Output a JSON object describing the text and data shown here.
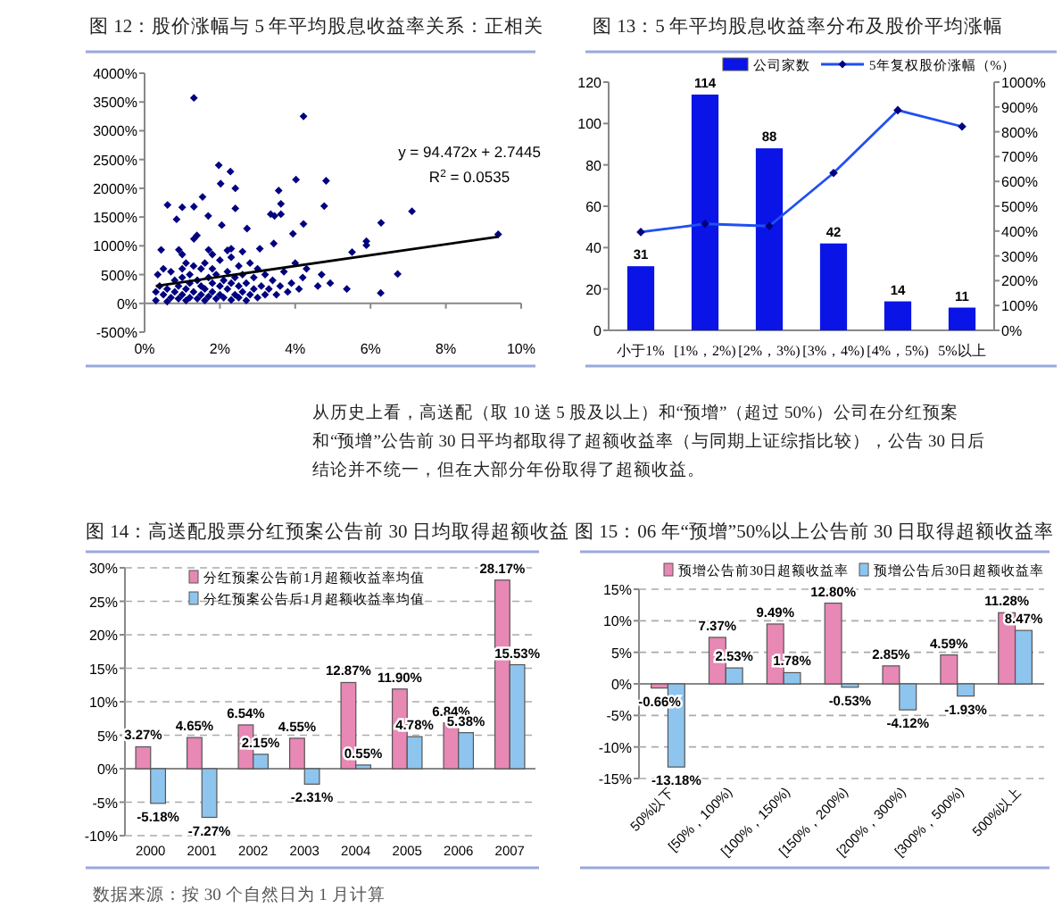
{
  "chart_data": [
    {
      "type": "scatter",
      "title": "图 12：股价涨幅与 5 年平均股息收益率关系：正相关",
      "xlim": [
        0,
        10
      ],
      "xticks": [
        {
          "value": 0,
          "label": "0%"
        },
        {
          "value": 2,
          "label": "2%"
        },
        {
          "value": 4,
          "label": "4%"
        },
        {
          "value": 6,
          "label": "6%"
        },
        {
          "value": 8,
          "label": "8%"
        },
        {
          "value": 10,
          "label": "10%"
        }
      ],
      "ylim": [
        -500,
        4000
      ],
      "yticks": [
        {
          "value": -500,
          "label": "-500%"
        },
        {
          "value": 0,
          "label": "0%"
        },
        {
          "value": 500,
          "label": "500%"
        },
        {
          "value": 1000,
          "label": "1000%"
        },
        {
          "value": 1500,
          "label": "1500%"
        },
        {
          "value": 2000,
          "label": "2000%"
        },
        {
          "value": 2500,
          "label": "2500%"
        },
        {
          "value": 3000,
          "label": "3000%"
        },
        {
          "value": 3500,
          "label": "3500%"
        },
        {
          "value": 4000,
          "label": "4000%"
        }
      ],
      "annotations": [
        "y = 94.472x + 2.7445",
        "R$^{2}$ = 0.0535"
      ],
      "series": [
        {
          "type": "scatter",
          "color": "#000080",
          "marker": "diamond",
          "x": [
            1.31,
            4.22,
            1.97,
            2.28,
            2.02,
            2.41,
            4.02,
            4.82,
            0.61,
            1.0,
            1.31,
            1.54,
            2.41,
            3.56,
            3.62,
            3.35,
            3.45,
            3.62,
            4.77,
            7.1,
            6.28,
            4.22,
            3.94,
            2.05,
            1.69,
            0.85,
            1.31,
            1.39,
            2.72,
            5.89,
            5.89,
            9.39,
            5.51,
            0.44,
            0.91,
            1.0,
            6.72,
            6.27,
            5.37,
            4.93,
            3.43,
            3.06,
            2.3,
            1.7,
            0.3,
            0.3,
            0.35,
            0.4,
            0.5,
            0.5,
            0.6,
            0.6,
            0.7,
            0.7,
            0.8,
            0.8,
            0.9,
            0.9,
            1.0,
            1.0,
            1.0,
            1.1,
            1.1,
            1.1,
            1.2,
            1.2,
            1.2,
            1.3,
            1.3,
            1.4,
            1.4,
            1.5,
            1.5,
            1.5,
            1.6,
            1.6,
            1.6,
            1.7,
            1.7,
            1.8,
            1.8,
            1.8,
            1.9,
            1.9,
            2.0,
            2.0,
            2.0,
            2.1,
            2.1,
            2.2,
            2.2,
            2.3,
            2.3,
            2.3,
            2.4,
            2.4,
            2.5,
            2.5,
            2.5,
            2.6,
            2.6,
            2.7,
            2.7,
            2.8,
            2.8,
            2.9,
            2.9,
            3.0,
            3.0,
            3.1,
            3.2,
            3.2,
            3.3,
            3.4,
            3.5,
            3.6,
            3.7,
            3.8,
            3.9,
            4.0,
            4.1,
            4.2,
            4.3,
            4.6,
            4.7,
            2.2,
            1.8,
            2.6
          ],
          "values": [
            3570,
            3250,
            2400,
            2290,
            2080,
            2000,
            2150,
            2130,
            1710,
            1670,
            1680,
            1850,
            1650,
            1960,
            1730,
            1550,
            1520,
            1550,
            1690,
            1600,
            1400,
            1380,
            1210,
            1360,
            1520,
            1460,
            1120,
            1180,
            1300,
            1080,
            1010,
            1200,
            890,
            930,
            930,
            850,
            510,
            180,
            250,
            350,
            1040,
            950,
            950,
            930,
            50,
            200,
            500,
            300,
            150,
            600,
            30,
            250,
            100,
            550,
            400,
            200,
            80,
            300,
            150,
            600,
            450,
            50,
            250,
            700,
            100,
            350,
            500,
            200,
            650,
            80,
            400,
            150,
            300,
            600,
            50,
            250,
            700,
            120,
            450,
            200,
            350,
            600,
            80,
            500,
            150,
            300,
            750,
            100,
            400,
            250,
            550,
            60,
            350,
            800,
            150,
            450,
            100,
            300,
            650,
            200,
            500,
            50,
            350,
            150,
            700,
            250,
            450,
            100,
            600,
            300,
            150,
            500,
            250,
            400,
            150,
            300,
            550,
            200,
            350,
            700,
            250,
            450,
            600,
            300,
            500,
            920,
            850,
            900
          ]
        },
        {
          "type": "line",
          "color": "#000000",
          "x": [
            0.3,
            9.4
          ],
          "values": [
            300,
            1160
          ]
        }
      ]
    },
    {
      "type": "bar",
      "title": "图 13：5 年平均股息收益率分布及股价平均涨幅",
      "categories": [
        "小于1%",
        "[1%，2%)",
        "[2%，3%)",
        "[3%，4%)",
        "[4%，5%)",
        "5%以上"
      ],
      "ylim": [
        0,
        120
      ],
      "yticks": [
        0,
        20,
        40,
        60,
        80,
        100,
        120
      ],
      "y2lim": [
        0,
        1000
      ],
      "y2ticks": [
        {
          "value": 0,
          "label": "0%"
        },
        {
          "value": 100,
          "label": "100%"
        },
        {
          "value": 200,
          "label": "200%"
        },
        {
          "value": 300,
          "label": "300%"
        },
        {
          "value": 400,
          "label": "400%"
        },
        {
          "value": 500,
          "label": "500%"
        },
        {
          "value": 600,
          "label": "600%"
        },
        {
          "value": 700,
          "label": "700%"
        },
        {
          "value": 800,
          "label": "800%"
        },
        {
          "value": 900,
          "label": "900%"
        },
        {
          "value": 1000,
          "label": "1000%"
        }
      ],
      "legend": "top",
      "series": [
        {
          "type": "bar",
          "name": "公司家数",
          "color": "#0a14e6",
          "values": [
            31,
            114,
            88,
            42,
            14,
            11
          ],
          "value_labels": [
            "31",
            "114",
            "88",
            "42",
            "14",
            "11"
          ]
        },
        {
          "type": "line",
          "name": "5年复权股价涨幅（%）",
          "color": "#2050f0",
          "marker": "diamond",
          "axis": "y2",
          "values": [
            396,
            429,
            420,
            634,
            887,
            821
          ]
        }
      ]
    },
    {
      "type": "other",
      "annotations": [
        "从历史上看，高送配（取 10 送 5 股及以上）和“预增”（超过 50%）公司在分红预案和“预增”公告前 30 日平均都取得了超额收益率（与同期上证综指比较），公告 30 日后结论并不统一，但在大部分年份取得了超额收益。"
      ]
    },
    {
      "type": "bar",
      "title": "图 14：高送配股票分红预案公告前 30 日均取得超额收益",
      "categories": [
        "2000",
        "2001",
        "2002",
        "2003",
        "2004",
        "2005",
        "2006",
        "2007"
      ],
      "ylim": [
        -10,
        30
      ],
      "yticks": [
        {
          "value": -10,
          "label": "-10%"
        },
        {
          "value": -5,
          "label": "-5%"
        },
        {
          "value": 0,
          "label": "0%"
        },
        {
          "value": 5,
          "label": "5%"
        },
        {
          "value": 10,
          "label": "10%"
        },
        {
          "value": 15,
          "label": "15%"
        },
        {
          "value": 20,
          "label": "20%"
        },
        {
          "value": 25,
          "label": "25%"
        },
        {
          "value": 30,
          "label": "30%"
        }
      ],
      "grid": "y",
      "legend": "top left",
      "series": [
        {
          "name": "分红预案公告前1月超额收益率均值",
          "color": "#e888b4",
          "values": [
            3.27,
            4.65,
            6.54,
            4.55,
            12.87,
            11.9,
            6.84,
            28.17
          ],
          "value_labels": [
            "3.27%",
            "4.65%",
            "6.54%",
            "4.55%",
            "12.87%",
            "11.90%",
            "6.84%",
            "28.17%"
          ]
        },
        {
          "name": "分红预案公告后1月超额收益率均值",
          "color": "#8ec5ee",
          "values": [
            -5.18,
            -7.27,
            2.15,
            -2.31,
            0.55,
            4.78,
            5.38,
            15.53
          ],
          "value_labels": [
            "-5.18%",
            "-7.27%",
            "2.15%",
            "-2.31%",
            "0.55%",
            "4.78%",
            "5.38%",
            "15.53%"
          ]
        }
      ]
    },
    {
      "type": "bar",
      "title": "图 15：06 年“预增”50%以上公告前 30 日取得超额收益率",
      "categories": [
        "50%以下",
        "[50%，100%)",
        "[100%，150%)",
        "[150%，200%)",
        "[200%，300%)",
        "[300%，500%)",
        "500%以上"
      ],
      "ylim": [
        -15,
        15
      ],
      "yticks": [
        {
          "value": -15,
          "label": "-15%"
        },
        {
          "value": -10,
          "label": "-10%"
        },
        {
          "value": -5,
          "label": "-5%"
        },
        {
          "value": 0,
          "label": "0%"
        },
        {
          "value": 5,
          "label": "5%"
        },
        {
          "value": 10,
          "label": "10%"
        },
        {
          "value": 15,
          "label": "15%"
        }
      ],
      "grid": "y",
      "legend": "top",
      "series": [
        {
          "name": "预增公告前30日超额收益率",
          "color": "#e888b4",
          "values": [
            -0.66,
            7.37,
            9.49,
            12.8,
            2.85,
            4.59,
            11.28
          ],
          "value_labels": [
            "-0.66%",
            "7.37%",
            "9.49%",
            "12.80%",
            "2.85%",
            "4.59%",
            "11.28%"
          ]
        },
        {
          "name": "预增公告后30日超额收益率",
          "color": "#8ec5ee",
          "values": [
            -13.18,
            2.53,
            1.78,
            -0.53,
            -4.12,
            -1.93,
            8.47
          ],
          "value_labels": [
            "-13.18%",
            "2.53%",
            "1.78%",
            "-0.53%",
            "-4.12%",
            "-1.93%",
            "8.47%"
          ]
        }
      ]
    },
    {
      "type": "other",
      "annotations": [
        "数据来源：按 30 个自然日为 1 月计算"
      ]
    }
  ]
}
